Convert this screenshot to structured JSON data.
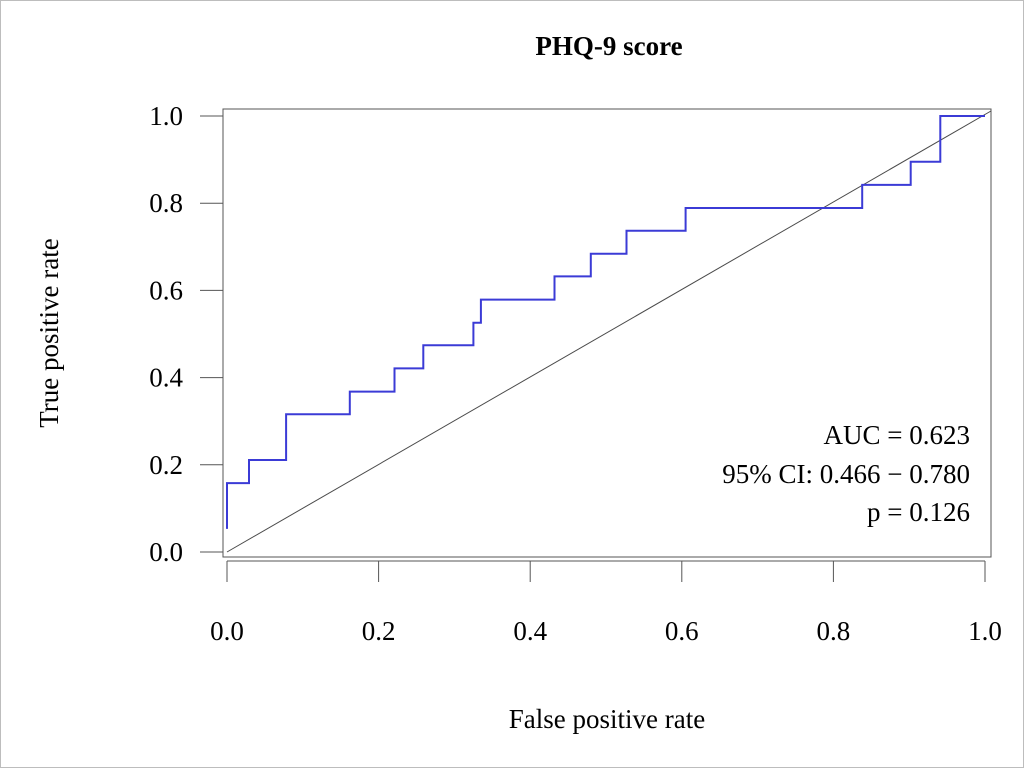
{
  "chart_data": {
    "type": "line",
    "title": "PHQ-9 score",
    "xlabel": "False positive rate",
    "ylabel": "True positive rate",
    "xlim": [
      0,
      1
    ],
    "ylim": [
      0,
      1
    ],
    "x_ticks": [
      "0.0",
      "0.2",
      "0.4",
      "0.6",
      "0.8",
      "1.0"
    ],
    "y_ticks": [
      "0.0",
      "0.2",
      "0.4",
      "0.6",
      "0.8",
      "1.0"
    ],
    "grid": false,
    "colors": {
      "roc": "#3b3bd6",
      "reference": "#4a4a4a",
      "axis": "#555555"
    },
    "series": [
      {
        "x": [
          0.0,
          0.0,
          0.029,
          0.029,
          0.078,
          0.078,
          0.162,
          0.162,
          0.221,
          0.221,
          0.259,
          0.259,
          0.325,
          0.325,
          0.335,
          0.335,
          0.432,
          0.432,
          0.48,
          0.48,
          0.527,
          0.527,
          0.605,
          0.605,
          0.838,
          0.838,
          0.902,
          0.902,
          0.941,
          0.941,
          1.0
        ],
        "y": [
          0.053,
          0.158,
          0.158,
          0.211,
          0.211,
          0.316,
          0.316,
          0.368,
          0.368,
          0.421,
          0.421,
          0.474,
          0.474,
          0.526,
          0.526,
          0.579,
          0.579,
          0.632,
          0.632,
          0.684,
          0.684,
          0.737,
          0.737,
          0.789,
          0.789,
          0.842,
          0.842,
          0.895,
          0.895,
          1.0,
          1.0
        ]
      }
    ],
    "reference_line": {
      "x": [
        0,
        1
      ],
      "y": [
        0,
        1
      ]
    },
    "annotations": [
      "AUC = 0.623",
      "95% CI: 0.466 − 0.780",
      "p = 0.126"
    ]
  }
}
